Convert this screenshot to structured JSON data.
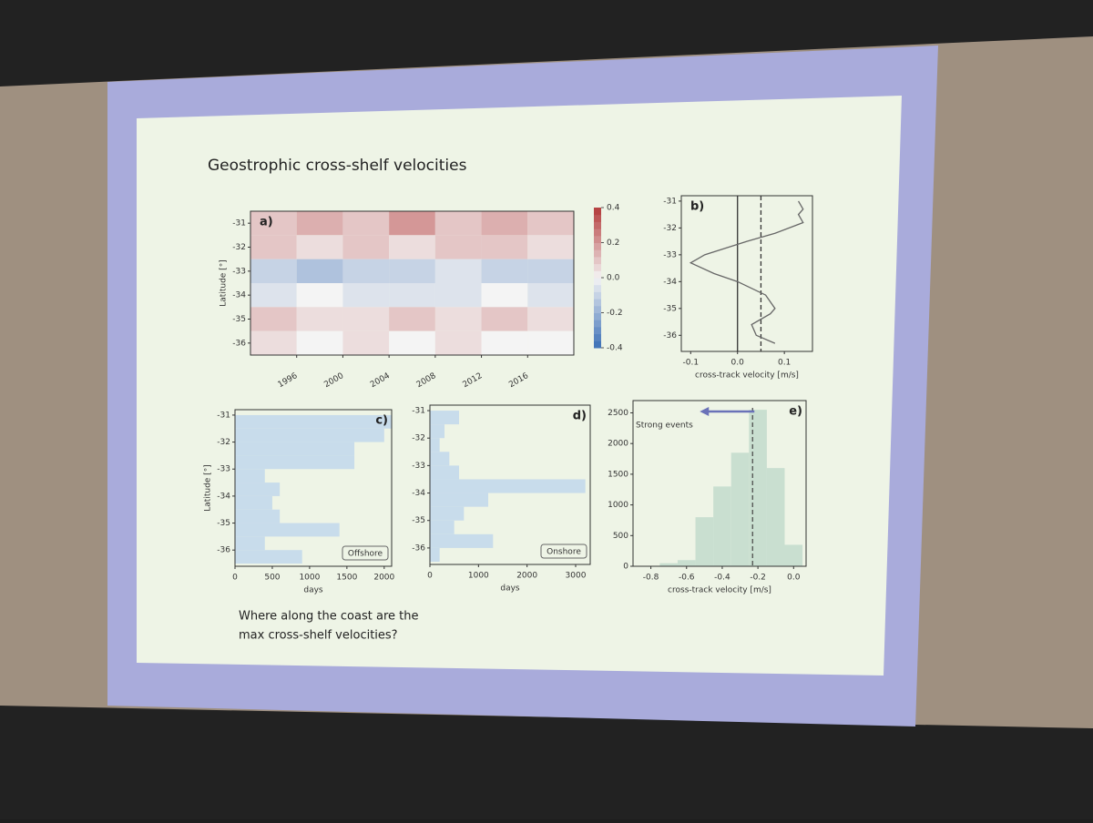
{
  "slide": {
    "title": "Geostrophic cross-shelf velocities",
    "question": [
      "Where along the coast are the",
      "max cross-shelf velocities?"
    ]
  },
  "chart_data": [
    {
      "type": "heatmap",
      "panel_label": "a)",
      "ylabel": "Latitude [°]",
      "x": [
        1994,
        1998,
        2002,
        2006,
        2010,
        2014,
        2018
      ],
      "y": [
        -31,
        -32,
        -33,
        -34,
        -35,
        -36
      ],
      "values": [
        [
          0.1,
          0.15,
          0.1,
          0.2,
          0.1,
          0.15,
          0.1
        ],
        [
          0.1,
          0.05,
          0.1,
          0.05,
          0.1,
          0.1,
          0.05
        ],
        [
          -0.1,
          -0.15,
          -0.1,
          -0.1,
          -0.05,
          -0.1,
          -0.1
        ],
        [
          -0.05,
          0,
          -0.05,
          -0.05,
          -0.05,
          0,
          -0.05
        ],
        [
          0.1,
          0.05,
          0.05,
          0.1,
          0.05,
          0.1,
          0.05
        ],
        [
          0.05,
          0,
          0.05,
          0,
          0.05,
          0,
          0
        ]
      ],
      "xlim": [
        1992,
        2020
      ],
      "xticks": [
        1996,
        2000,
        2004,
        2008,
        2012,
        2016
      ],
      "ylim": [
        -36.5,
        -30.5
      ],
      "yticks": [
        -31,
        -32,
        -33,
        -34,
        -35,
        -36
      ],
      "clim": [
        -0.4,
        0.4
      ],
      "cticks": [
        0.4,
        0.2,
        {
          "value": 0,
          "label": "0.0"
        },
        -0.2,
        -0.4
      ],
      "colors": [
        "#3b6fb6",
        "#f4f4f4",
        "#b33b3b"
      ]
    },
    {
      "type": "line",
      "panel_label": "b)",
      "xlabel": "cross-track velocity [m/s]",
      "y": [
        -31,
        -31.3,
        -31.5,
        -31.8,
        -32.2,
        -32.5,
        -33,
        -33.3,
        -33.7,
        -34,
        -34.5,
        -35,
        -35.2,
        -35.6,
        -36,
        -36.3
      ],
      "series": [
        {
          "color": "#666666",
          "values": [
            0.13,
            0.14,
            0.13,
            0.14,
            0.08,
            0.02,
            -0.07,
            -0.1,
            -0.05,
            0.0,
            0.06,
            0.08,
            0.07,
            0.03,
            0.04,
            0.08
          ]
        }
      ],
      "vlines": [
        0,
        0.05
      ],
      "vline_styles": [
        "solid",
        "dashed"
      ],
      "xlim": [
        -0.12,
        0.16
      ],
      "xticks": [
        -0.1,
        {
          "value": 0,
          "label": "0.0"
        },
        0.1
      ],
      "ylim": [
        -36.6,
        -30.8
      ],
      "yticks": [
        -31,
        -32,
        -33,
        -34,
        -35,
        -36
      ]
    },
    {
      "type": "histogram",
      "orientation": "horizontal",
      "panel_label": "c)",
      "ylabel": "Latitude [°]",
      "xlabel": "days",
      "box_label": "Offshore",
      "color": "#c8dceb",
      "bins": [
        -36.5,
        -36,
        -35.5,
        -35,
        -34.5,
        -34,
        -33.5,
        -33,
        -32.5,
        -32,
        -31.5,
        -31
      ],
      "values": [
        900,
        400,
        1400,
        600,
        500,
        600,
        400,
        1600,
        1600,
        2000,
        2100
      ],
      "xlim": [
        0,
        2100
      ],
      "xticks": [
        0,
        500,
        1000,
        1500,
        2000
      ],
      "ylim": [
        -36.6,
        -30.8
      ],
      "yticks": [
        -31,
        -32,
        -33,
        -34,
        -35,
        -36
      ]
    },
    {
      "type": "histogram",
      "orientation": "horizontal",
      "panel_label": "d)",
      "xlabel": "days",
      "box_label": "Onshore",
      "color": "#c8dceb",
      "bins": [
        -36.5,
        -36,
        -35.5,
        -35,
        -34.5,
        -34,
        -33.5,
        -33,
        -32.5,
        -32,
        -31.5,
        -31
      ],
      "values": [
        200,
        1300,
        500,
        700,
        1200,
        3200,
        600,
        400,
        200,
        300,
        600
      ],
      "xlim": [
        0,
        3300
      ],
      "xticks": [
        0,
        1000,
        2000,
        3000
      ],
      "ylim": [
        -36.6,
        -30.8
      ],
      "yticks": [
        -31,
        -32,
        -33,
        -34,
        -35,
        -36
      ]
    },
    {
      "type": "histogram",
      "orientation": "vertical",
      "panel_label": "e)",
      "xlabel": "cross-track velocity [m/s]",
      "annotation": "Strong events",
      "color": "#c9dfd0",
      "bins": [
        -0.75,
        -0.65,
        -0.55,
        -0.45,
        -0.35,
        -0.25,
        -0.15,
        -0.05,
        0.05
      ],
      "values": [
        50,
        100,
        800,
        1300,
        1850,
        2550,
        1600,
        350
      ],
      "vlines": [
        -0.23
      ],
      "vline_styles": [
        "dashed"
      ],
      "xlim": [
        -0.9,
        0.07
      ],
      "xticks": [
        -0.8,
        -0.6,
        -0.4,
        -0.2,
        {
          "value": 0,
          "label": "0.0"
        }
      ],
      "ylim": [
        0,
        2700
      ],
      "yticks": [
        0,
        500,
        1000,
        1500,
        2000,
        2500
      ]
    }
  ]
}
